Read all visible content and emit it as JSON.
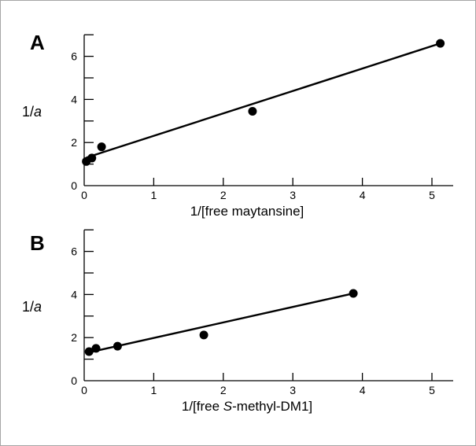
{
  "chart_data": [
    {
      "type": "scatter",
      "panel": "A",
      "xlabel": "1/[free maytansine]",
      "ylabel_prefix": "1/",
      "ylabel_var": "a",
      "xlim": [
        0,
        5.3
      ],
      "ylim": [
        0,
        7
      ],
      "xticks": [
        0,
        1,
        2,
        3,
        4,
        5
      ],
      "yticks_labeled": [
        0,
        2,
        4,
        6
      ],
      "yticks_minor": [
        1,
        3,
        5,
        7
      ],
      "points": [
        {
          "x": 0.03,
          "y": 1.12
        },
        {
          "x": 0.11,
          "y": 1.28
        },
        {
          "x": 0.25,
          "y": 1.8
        },
        {
          "x": 2.42,
          "y": 3.45
        },
        {
          "x": 5.12,
          "y": 6.6
        }
      ],
      "fit": {
        "x": [
          0.03,
          5.12
        ],
        "y": [
          1.3,
          6.6
        ]
      }
    },
    {
      "type": "scatter",
      "panel": "B",
      "xlabel_pre": "1/[free ",
      "xlabel_italic": "S",
      "xlabel_post": "-methyl-DM1]",
      "ylabel_prefix": "1/",
      "ylabel_var": "a",
      "xlim": [
        0,
        5.3
      ],
      "ylim": [
        0,
        7
      ],
      "xticks": [
        0,
        1,
        2,
        3,
        4,
        5
      ],
      "yticks_labeled": [
        0,
        2,
        4,
        6
      ],
      "yticks_minor": [
        1,
        3,
        5,
        7
      ],
      "points": [
        {
          "x": 0.07,
          "y": 1.35
        },
        {
          "x": 0.17,
          "y": 1.5
        },
        {
          "x": 0.48,
          "y": 1.6
        },
        {
          "x": 1.72,
          "y": 2.12
        },
        {
          "x": 3.87,
          "y": 4.05
        }
      ],
      "fit": {
        "x": [
          0.05,
          3.87
        ],
        "y": [
          1.3,
          4.05
        ]
      }
    }
  ]
}
